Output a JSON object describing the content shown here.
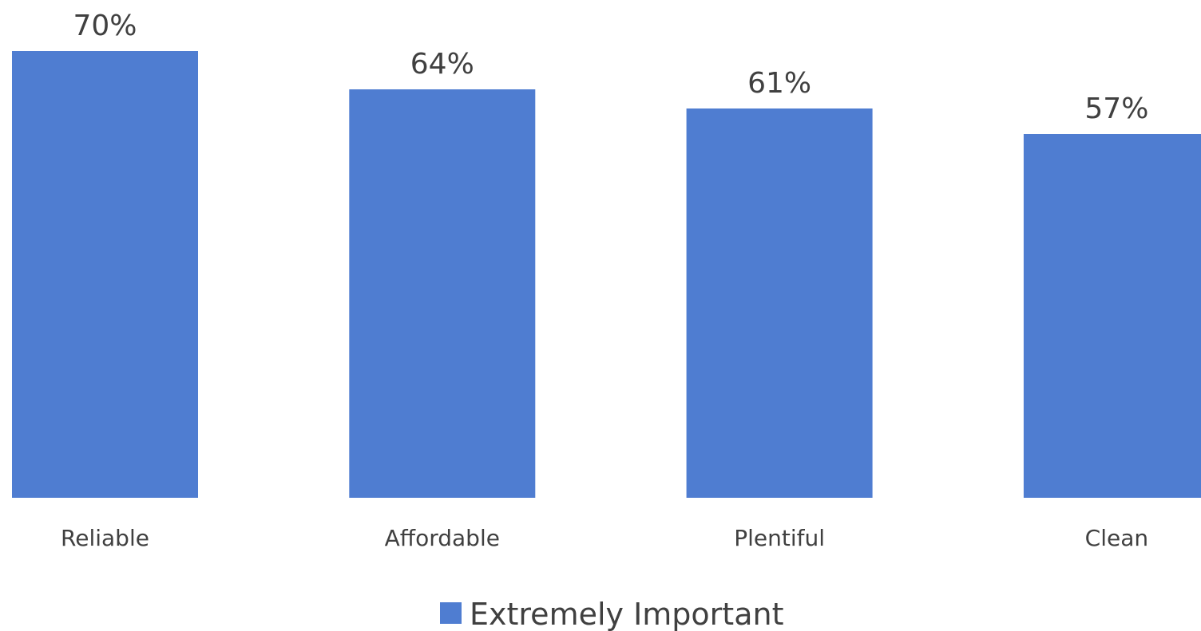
{
  "chart_data": {
    "type": "bar",
    "categories": [
      "Reliable",
      "Affordable",
      "Plentiful",
      "Clean"
    ],
    "series": [
      {
        "name": "Extremely Important",
        "values": [
          70,
          64,
          61,
          57
        ],
        "color": "#4f7dd1"
      }
    ],
    "data_labels": [
      "70%",
      "64%",
      "61%",
      "57%"
    ],
    "ylim": [
      0,
      70
    ],
    "grid": false,
    "legend_position": "bottom"
  },
  "legend": {
    "label": "Extremely Important",
    "color": "#4f7dd1"
  }
}
